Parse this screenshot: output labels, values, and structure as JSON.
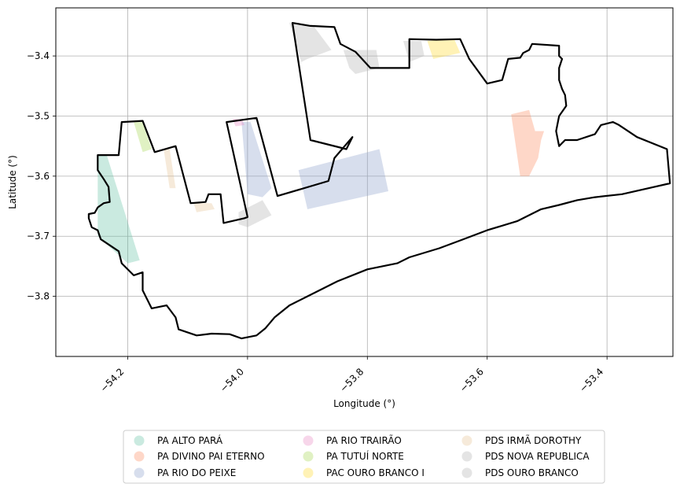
{
  "chart_data": {
    "type": "map",
    "xlabel": "Longitude (°)",
    "ylabel": "Latitude (°)",
    "xlim": [
      -54.32,
      -53.29
    ],
    "ylim": [
      -3.9,
      -3.32
    ],
    "grid": true,
    "x_ticks": [
      {
        "value": -54.2,
        "label": "−54.2"
      },
      {
        "value": -54.0,
        "label": "−54.0"
      },
      {
        "value": -53.8,
        "label": "−53.8"
      },
      {
        "value": -53.6,
        "label": "−53.6"
      },
      {
        "value": -53.4,
        "label": "−53.4"
      }
    ],
    "y_ticks": [
      {
        "value": -3.4,
        "label": "−3.4"
      },
      {
        "value": -3.5,
        "label": "−3.5"
      },
      {
        "value": -3.6,
        "label": "−3.6"
      },
      {
        "value": -3.7,
        "label": "−3.7"
      },
      {
        "value": -3.8,
        "label": "−3.8"
      }
    ],
    "legend_position": "bottom-center",
    "legend": [
      {
        "label": "PA ALTO PARÁ",
        "color": "#66c2a5"
      },
      {
        "label": "PA DIVINO PAI ETERNO",
        "color": "#fc8d62"
      },
      {
        "label": "PA RIO DO PEIXE",
        "color": "#8da0cb"
      },
      {
        "label": "PA RIO TRAIRÃO",
        "color": "#e78ac3"
      },
      {
        "label": "PA TUTUÍ NORTE",
        "color": "#a6d854"
      },
      {
        "label": "PAC OURO BRANCO I",
        "color": "#ffd92f"
      },
      {
        "label": "PDS IRMÃ DOROTHY",
        "color": "#e5c494"
      },
      {
        "label": "PDS NOVA REPUBLICA",
        "color": "#b3b3b3"
      },
      {
        "label": "PDS OURO BRANCO",
        "color": "#b3b3b3"
      }
    ],
    "settlements": [
      {
        "name": "PA ALTO PARÁ",
        "color": "#66c2a5",
        "coords": [
          [
            -54.25,
            -3.565
          ],
          [
            -54.235,
            -3.565
          ],
          [
            -54.18,
            -3.74
          ],
          [
            -54.2,
            -3.745
          ],
          [
            -54.25,
            -3.7
          ]
        ]
      },
      {
        "name": "PA DIVINO PAI ETERNO",
        "color": "#fc8d62",
        "coords": [
          [
            -53.56,
            -3.497
          ],
          [
            -53.53,
            -3.49
          ],
          [
            -53.52,
            -3.525
          ],
          [
            -53.505,
            -3.525
          ],
          [
            -53.51,
            -3.54
          ],
          [
            -53.515,
            -3.57
          ],
          [
            -53.53,
            -3.6
          ],
          [
            -53.545,
            -3.6
          ]
        ]
      },
      {
        "name": "PA RIO DO PEIXE A",
        "color": "#8da0cb",
        "coords": [
          [
            -54.01,
            -3.51
          ],
          [
            -53.995,
            -3.51
          ],
          [
            -53.96,
            -3.62
          ],
          [
            -53.975,
            -3.635
          ],
          [
            -54.0,
            -3.63
          ]
        ]
      },
      {
        "name": "PA RIO DO PEIXE B",
        "color": "#8da0cb",
        "coords": [
          [
            -53.915,
            -3.59
          ],
          [
            -53.78,
            -3.555
          ],
          [
            -53.765,
            -3.625
          ],
          [
            -53.9,
            -3.655
          ]
        ]
      },
      {
        "name": "PA RIO TRAIRÃO",
        "color": "#e78ac3",
        "coords": [
          [
            -54.025,
            -3.505
          ],
          [
            -54.01,
            -3.505
          ],
          [
            -54.005,
            -3.515
          ],
          [
            -54.02,
            -3.517
          ]
        ]
      },
      {
        "name": "PA TUTUÍ NORTE",
        "color": "#a6d854",
        "coords": [
          [
            -54.19,
            -3.51
          ],
          [
            -54.175,
            -3.51
          ],
          [
            -54.16,
            -3.555
          ],
          [
            -54.175,
            -3.56
          ]
        ]
      },
      {
        "name": "PDS IRMÃ DOROTHY A",
        "color": "#e5c494",
        "coords": [
          [
            -54.14,
            -3.555
          ],
          [
            -54.13,
            -3.555
          ],
          [
            -54.12,
            -3.62
          ],
          [
            -54.13,
            -3.62
          ]
        ]
      },
      {
        "name": "PDS IRMÃ DOROTHY B",
        "color": "#e5c494",
        "coords": [
          [
            -54.09,
            -3.645
          ],
          [
            -54.06,
            -3.645
          ],
          [
            -54.055,
            -3.655
          ],
          [
            -54.085,
            -3.66
          ]
        ]
      },
      {
        "name": "PDS NOVA REPUBLICA",
        "color": "#b3b3b3",
        "coords": [
          [
            -53.93,
            -3.345
          ],
          [
            -53.89,
            -3.35
          ],
          [
            -53.86,
            -3.39
          ],
          [
            -53.9,
            -3.405
          ],
          [
            -53.91,
            -3.41
          ]
        ]
      },
      {
        "name": "PDS OURO BRANCO A",
        "color": "#b3b3b3",
        "coords": [
          [
            -53.84,
            -3.39
          ],
          [
            -53.785,
            -3.39
          ],
          [
            -53.78,
            -3.42
          ],
          [
            -53.82,
            -3.43
          ],
          [
            -53.83,
            -3.42
          ]
        ]
      },
      {
        "name": "PDS OURO BRANCO B",
        "color": "#b3b3b3",
        "coords": [
          [
            -53.74,
            -3.375
          ],
          [
            -53.71,
            -3.375
          ],
          [
            -53.705,
            -3.4
          ],
          [
            -53.73,
            -3.41
          ]
        ]
      },
      {
        "name": "PDS OURO BRANCO C",
        "color": "#b3b3b3",
        "coords": [
          [
            -54.015,
            -3.66
          ],
          [
            -53.975,
            -3.64
          ],
          [
            -53.96,
            -3.665
          ],
          [
            -54.0,
            -3.685
          ],
          [
            -54.015,
            -3.68
          ]
        ]
      },
      {
        "name": "PAC OURO BRANCO I",
        "color": "#ffd92f",
        "coords": [
          [
            -53.7,
            -3.375
          ],
          [
            -53.655,
            -3.372
          ],
          [
            -53.645,
            -3.395
          ],
          [
            -53.69,
            -3.405
          ]
        ]
      }
    ],
    "municipality_outline": [
      [
        -54.265,
        -3.663
      ],
      [
        -54.255,
        -3.661
      ],
      [
        -54.25,
        -3.652
      ],
      [
        -54.24,
        -3.645
      ],
      [
        -54.23,
        -3.643
      ],
      [
        -54.232,
        -3.618
      ],
      [
        -54.24,
        -3.605
      ],
      [
        -54.25,
        -3.59
      ],
      [
        -54.25,
        -3.565
      ],
      [
        -54.23,
        -3.565
      ],
      [
        -54.215,
        -3.565
      ],
      [
        -54.21,
        -3.51
      ],
      [
        -54.175,
        -3.508
      ],
      [
        -54.155,
        -3.56
      ],
      [
        -54.12,
        -3.55
      ],
      [
        -54.095,
        -3.645
      ],
      [
        -54.07,
        -3.643
      ],
      [
        -54.065,
        -3.63
      ],
      [
        -54.045,
        -3.63
      ],
      [
        -54.04,
        -3.678
      ],
      [
        -54.005,
        -3.67
      ],
      [
        -54.0,
        -3.668
      ],
      [
        -54.035,
        -3.51
      ],
      [
        -53.985,
        -3.503
      ],
      [
        -53.95,
        -3.633
      ],
      [
        -53.865,
        -3.608
      ],
      [
        -53.855,
        -3.57
      ],
      [
        -53.825,
        -3.535
      ],
      [
        -53.835,
        -3.555
      ],
      [
        -53.895,
        -3.54
      ],
      [
        -53.925,
        -3.345
      ],
      [
        -53.895,
        -3.35
      ],
      [
        -53.855,
        -3.352
      ],
      [
        -53.845,
        -3.38
      ],
      [
        -53.82,
        -3.393
      ],
      [
        -53.795,
        -3.42
      ],
      [
        -53.77,
        -3.42
      ],
      [
        -53.755,
        -3.42
      ],
      [
        -53.73,
        -3.42
      ],
      [
        -53.73,
        -3.372
      ],
      [
        -53.685,
        -3.373
      ],
      [
        -53.645,
        -3.372
      ],
      [
        -53.63,
        -3.405
      ],
      [
        -53.6,
        -3.446
      ],
      [
        -53.575,
        -3.44
      ],
      [
        -53.565,
        -3.405
      ],
      [
        -53.545,
        -3.403
      ],
      [
        -53.54,
        -3.395
      ],
      [
        -53.53,
        -3.39
      ],
      [
        -53.525,
        -3.38
      ],
      [
        -53.48,
        -3.383
      ],
      [
        -53.48,
        -3.4
      ],
      [
        -53.475,
        -3.405
      ],
      [
        -53.48,
        -3.42
      ],
      [
        -53.48,
        -3.44
      ],
      [
        -53.475,
        -3.455
      ],
      [
        -53.47,
        -3.465
      ],
      [
        -53.468,
        -3.483
      ],
      [
        -53.48,
        -3.5
      ],
      [
        -53.485,
        -3.525
      ],
      [
        -53.48,
        -3.55
      ],
      [
        -53.47,
        -3.54
      ],
      [
        -53.45,
        -3.54
      ],
      [
        -53.42,
        -3.53
      ],
      [
        -53.41,
        -3.515
      ],
      [
        -53.39,
        -3.51
      ],
      [
        -53.38,
        -3.515
      ],
      [
        -53.35,
        -3.535
      ],
      [
        -53.3,
        -3.555
      ],
      [
        -53.295,
        -3.612
      ],
      [
        -53.33,
        -3.62
      ],
      [
        -53.375,
        -3.63
      ],
      [
        -53.42,
        -3.635
      ],
      [
        -53.45,
        -3.64
      ],
      [
        -53.48,
        -3.648
      ],
      [
        -53.51,
        -3.655
      ],
      [
        -53.55,
        -3.675
      ],
      [
        -53.6,
        -3.69
      ],
      [
        -53.64,
        -3.705
      ],
      [
        -53.68,
        -3.72
      ],
      [
        -53.73,
        -3.735
      ],
      [
        -53.75,
        -3.745
      ],
      [
        -53.8,
        -3.755
      ],
      [
        -53.85,
        -3.775
      ],
      [
        -53.9,
        -3.8
      ],
      [
        -53.93,
        -3.815
      ],
      [
        -53.955,
        -3.835
      ],
      [
        -53.97,
        -3.853
      ],
      [
        -53.985,
        -3.865
      ],
      [
        -54.01,
        -3.87
      ],
      [
        -54.03,
        -3.863
      ],
      [
        -54.06,
        -3.862
      ],
      [
        -54.085,
        -3.865
      ],
      [
        -54.115,
        -3.855
      ],
      [
        -54.12,
        -3.835
      ],
      [
        -54.135,
        -3.815
      ],
      [
        -54.16,
        -3.82
      ],
      [
        -54.17,
        -3.8
      ],
      [
        -54.175,
        -3.79
      ],
      [
        -54.175,
        -3.78
      ],
      [
        -54.175,
        -3.76
      ],
      [
        -54.19,
        -3.765
      ],
      [
        -54.21,
        -3.745
      ],
      [
        -54.215,
        -3.725
      ],
      [
        -54.23,
        -3.715
      ],
      [
        -54.245,
        -3.705
      ],
      [
        -54.25,
        -3.69
      ],
      [
        -54.26,
        -3.685
      ],
      [
        -54.265,
        -3.67
      ],
      [
        -54.265,
        -3.663
      ]
    ]
  }
}
